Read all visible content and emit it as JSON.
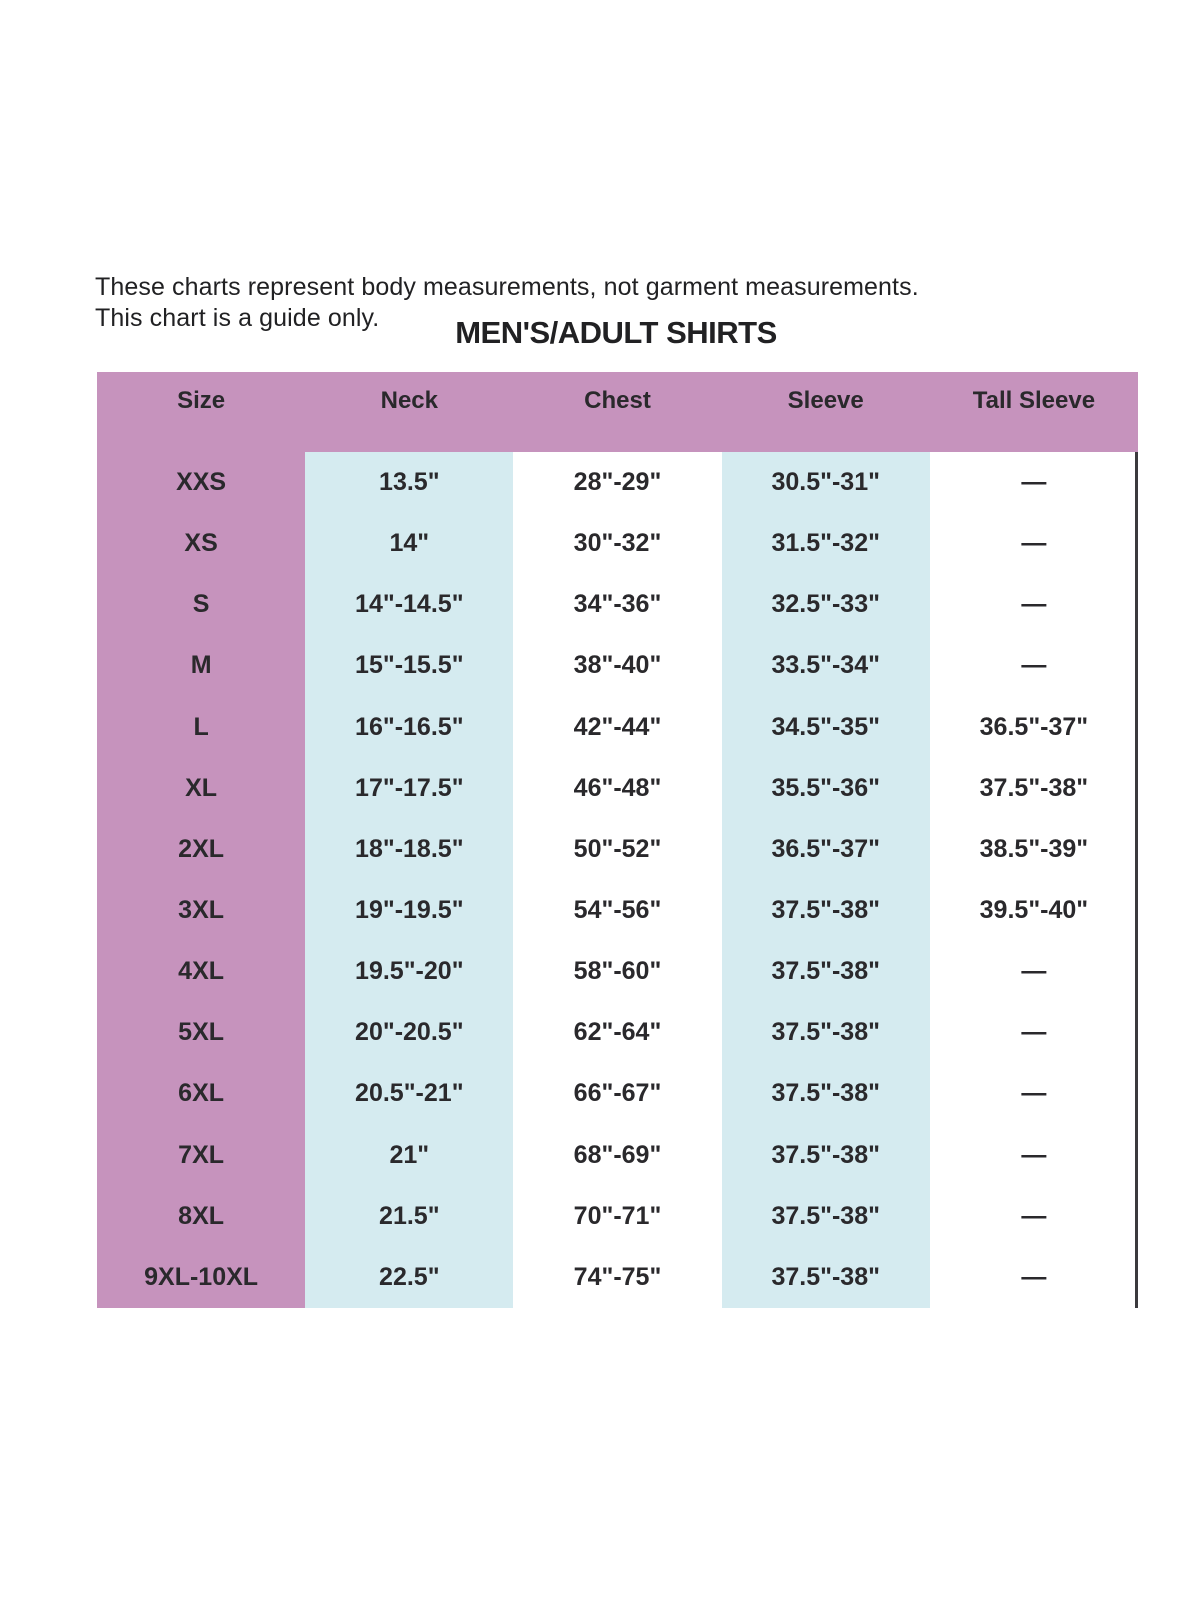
{
  "intro": {
    "line1": "These charts represent body measurements, not garment measurements.",
    "line2": "This chart is a guide only."
  },
  "chart_data": {
    "type": "table",
    "title": "MEN'S/ADULT SHIRTS",
    "columns": [
      "Size",
      "Neck",
      "Chest",
      "Sleeve",
      "Tall Sleeve"
    ],
    "rows": [
      [
        "XXS",
        "13.5\"",
        "28\"-29\"",
        "30.5\"-31\"",
        "—"
      ],
      [
        "XS",
        "14\"",
        "30\"-32\"",
        "31.5\"-32\"",
        "—"
      ],
      [
        "S",
        "14\"-14.5\"",
        "34\"-36\"",
        "32.5\"-33\"",
        "—"
      ],
      [
        "M",
        "15\"-15.5\"",
        "38\"-40\"",
        "33.5\"-34\"",
        "—"
      ],
      [
        "L",
        "16\"-16.5\"",
        "42\"-44\"",
        "34.5\"-35\"",
        "36.5\"-37\""
      ],
      [
        "XL",
        "17\"-17.5\"",
        "46\"-48\"",
        "35.5\"-36\"",
        "37.5\"-38\""
      ],
      [
        "2XL",
        "18\"-18.5\"",
        "50\"-52\"",
        "36.5\"-37\"",
        "38.5\"-39\""
      ],
      [
        "3XL",
        "19\"-19.5\"",
        "54\"-56\"",
        "37.5\"-38\"",
        "39.5\"-40\""
      ],
      [
        "4XL",
        "19.5\"-20\"",
        "58\"-60\"",
        "37.5\"-38\"",
        "—"
      ],
      [
        "5XL",
        "20\"-20.5\"",
        "62\"-64\"",
        "37.5\"-38\"",
        "—"
      ],
      [
        "6XL",
        "20.5\"-21\"",
        "66\"-67\"",
        "37.5\"-38\"",
        "—"
      ],
      [
        "7XL",
        "21\"",
        "68\"-69\"",
        "37.5\"-38\"",
        "—"
      ],
      [
        "8XL",
        "21.5\"",
        "70\"-71\"",
        "37.5\"-38\"",
        "—"
      ],
      [
        "9XL-10XL",
        "22.5\"",
        "74\"-75\"",
        "37.5\"-38\"",
        "—"
      ]
    ],
    "colors": {
      "header_bg": "#c693bd",
      "column_highlight_bg": "#d5ebf0",
      "text": "#2a292c",
      "right_rule": "#3b3a3d"
    },
    "layout": "Size and header band in pink; Neck and Sleeve columns highlighted in light blue; Chest and Tall Sleeve on white; thin dark rule on right edge of body"
  }
}
